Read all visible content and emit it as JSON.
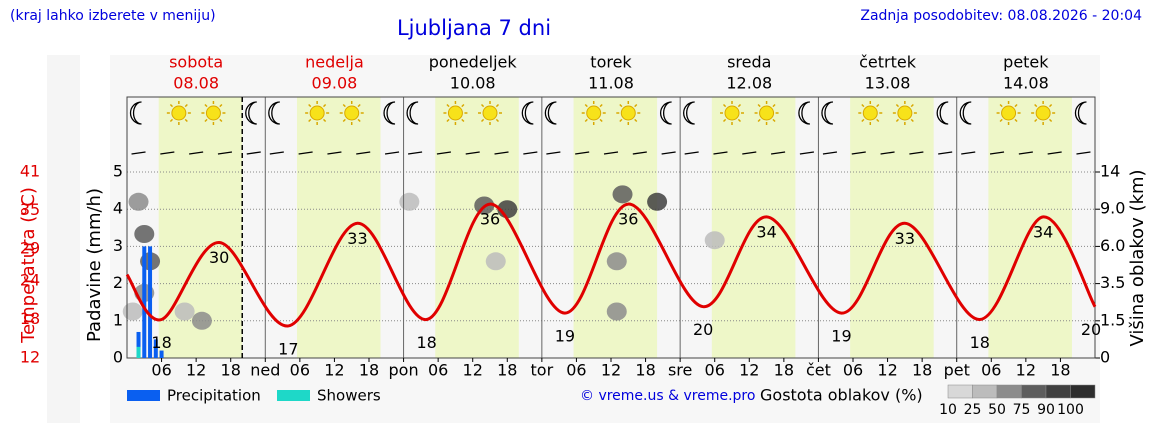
{
  "header": {
    "note": "(kraj lahko izberete v meniju)",
    "updated": "Zadnja posodobitev: 08.08.2026 - 20:04"
  },
  "chart_data": {
    "type": "line",
    "title": "Ljubljana 7 dni",
    "days": [
      {
        "name": "sobota",
        "date": "08.08",
        "color": "#e00000"
      },
      {
        "name": "nedelja",
        "date": "09.08",
        "color": "#e00000"
      },
      {
        "name": "ponedeljek",
        "date": "10.08",
        "color": "#000000"
      },
      {
        "name": "torek",
        "date": "11.08",
        "color": "#000000"
      },
      {
        "name": "sreda",
        "date": "12.08",
        "color": "#000000"
      },
      {
        "name": "četrtek",
        "date": "13.08",
        "color": "#000000"
      },
      {
        "name": "petek",
        "date": "14.08",
        "color": "#000000"
      }
    ],
    "daylight": [
      5.5,
      20
    ],
    "now": 20,
    "xlim": [
      0,
      168
    ],
    "xticks": [
      {
        "value": 6,
        "label": "06"
      },
      12,
      18,
      {
        "value": 24,
        "label": "ned"
      },
      {
        "value": 30,
        "label": "06"
      },
      {
        "value": 36,
        "label": "12"
      },
      {
        "value": 42,
        "label": "18"
      },
      {
        "value": 48,
        "label": "pon"
      },
      {
        "value": 54,
        "label": "06"
      },
      {
        "value": 60,
        "label": "12"
      },
      {
        "value": 66,
        "label": "18"
      },
      {
        "value": 72,
        "label": "tor"
      },
      {
        "value": 78,
        "label": "06"
      },
      {
        "value": 84,
        "label": "12"
      },
      {
        "value": 90,
        "label": "18"
      },
      {
        "value": 96,
        "label": "sre"
      },
      {
        "value": 102,
        "label": "06"
      },
      {
        "value": 108,
        "label": "12"
      },
      {
        "value": 114,
        "label": "18"
      },
      {
        "value": 120,
        "label": "čet"
      },
      {
        "value": 126,
        "label": "06"
      },
      {
        "value": 132,
        "label": "12"
      },
      {
        "value": 138,
        "label": "18"
      },
      {
        "value": 144,
        "label": "pet"
      },
      {
        "value": 150,
        "label": "06"
      },
      {
        "value": 156,
        "label": "12"
      },
      {
        "value": 162,
        "label": "18"
      }
    ],
    "ylabel": "Padavine (mm/h)",
    "ylim": [
      0,
      5
    ],
    "yticks": [
      0,
      1,
      2,
      3,
      4,
      5
    ],
    "grid": true,
    "temperature": {
      "label": "Temperatura (°C)",
      "color": "#e00000",
      "lim": [
        12,
        41
      ],
      "ticks": [
        12,
        18,
        24,
        29,
        35,
        41
      ],
      "x": [
        0,
        6,
        16,
        28,
        40,
        52,
        63,
        76,
        87,
        100,
        111,
        124,
        135,
        148,
        159,
        168
      ],
      "values": [
        25,
        18,
        30,
        17,
        33,
        18,
        36,
        19,
        36,
        20,
        34,
        19,
        33,
        18,
        34,
        20
      ],
      "value_labels": [
        null,
        "18",
        "30",
        "17",
        "33",
        "18",
        "36",
        "19",
        "36",
        "20",
        "34",
        "19",
        "33",
        "18",
        "34",
        "20"
      ]
    },
    "y2label": "Višina oblakov (km)",
    "y2lim": [
      0,
      14
    ],
    "y2ticks": [
      0,
      1.5,
      3.5,
      {
        "value": 6,
        "label": "6.0"
      },
      {
        "value": 9,
        "label": "9.0"
      },
      14
    ],
    "series": [
      {
        "name": "Precipitation",
        "color": "#0a5ff0",
        "x": [
          2,
          3,
          4,
          5,
          6
        ],
        "values": [
          0.7,
          3,
          3,
          0.5,
          0.2
        ]
      },
      {
        "name": "Showers",
        "color": "#1ed8c8",
        "x": [
          2
        ],
        "values": [
          0.3
        ]
      }
    ],
    "clouds": {
      "label": "Gostota oblakov (%)",
      "levels": [
        10,
        25,
        50,
        75,
        90,
        100
      ],
      "cells": [
        {
          "x": 2,
          "km": 10,
          "density": 50
        },
        {
          "x": 3,
          "km": 7,
          "density": 75
        },
        {
          "x": 4,
          "km": 5,
          "density": 75
        },
        {
          "x": 3,
          "km": 3,
          "density": 50
        },
        {
          "x": 1,
          "km": 2,
          "density": 25
        },
        {
          "x": 10,
          "km": 2,
          "density": 25
        },
        {
          "x": 13,
          "km": 1.5,
          "density": 50
        },
        {
          "x": 49,
          "km": 10,
          "density": 25
        },
        {
          "x": 62,
          "km": 9.5,
          "density": 75
        },
        {
          "x": 66,
          "km": 9,
          "density": 90
        },
        {
          "x": 64,
          "km": 5,
          "density": 25
        },
        {
          "x": 86,
          "km": 11,
          "density": 75
        },
        {
          "x": 92,
          "km": 10,
          "density": 90
        },
        {
          "x": 85,
          "km": 5,
          "density": 50
        },
        {
          "x": 85,
          "km": 2,
          "density": 50
        },
        {
          "x": 102,
          "km": 6.5,
          "density": 25
        }
      ],
      "color": "#555555"
    },
    "credit": "© vreme.us & vreme.pro"
  }
}
